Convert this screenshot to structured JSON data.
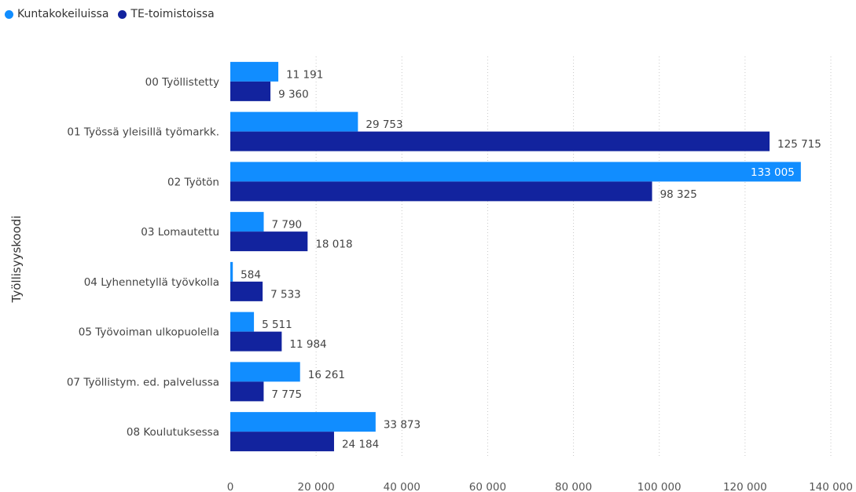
{
  "chart_data": {
    "type": "bar",
    "orientation": "horizontal",
    "ylabel": "Työllisyyskoodi",
    "xlim": [
      0,
      140000
    ],
    "xticks": [
      0,
      20000,
      40000,
      60000,
      80000,
      100000,
      120000,
      140000
    ],
    "xtick_labels": [
      "0",
      "20 000",
      "40 000",
      "60 000",
      "80 000",
      "100 000",
      "120 000",
      "140 000"
    ],
    "grid": "vertical dotted",
    "legend_position": "top-left",
    "categories": [
      "00 Työllistetty",
      "01 Työssä yleisillä työmarkk.",
      "02 Työtön",
      "03 Lomautettu",
      "04 Lyhennetyllä työvkolla",
      "05 Työvoiman ulkopuolella",
      "07 Työllistym. ed. palvelussa",
      "08 Koulutuksessa"
    ],
    "series": [
      {
        "name": "Kuntakokeiluissa",
        "color": "#118dff",
        "values": [
          11191,
          29753,
          133005,
          7790,
          584,
          5511,
          16261,
          33873
        ],
        "labels": [
          "11 191",
          "29 753",
          "133 005",
          "7 790",
          "584",
          "5 511",
          "16 261",
          "33 873"
        ]
      },
      {
        "name": "TE-toimistoissa",
        "color": "#12239e",
        "values": [
          9360,
          125715,
          98325,
          18018,
          7533,
          11984,
          7775,
          24184
        ],
        "labels": [
          "9 360",
          "125 715",
          "98 325",
          "18 018",
          "7 533",
          "11 984",
          "7 775",
          "24 184"
        ]
      }
    ]
  }
}
